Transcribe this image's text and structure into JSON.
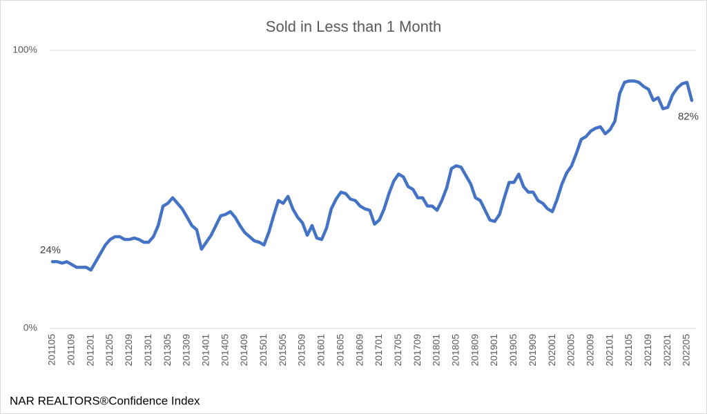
{
  "chart_data": {
    "type": "line",
    "title": "Sold in Less than 1 Month",
    "source": "NAR REALTORS®Confidence Index",
    "categories": [
      "201105",
      null,
      null,
      null,
      "201109",
      null,
      null,
      null,
      "201201",
      null,
      null,
      null,
      "201205",
      null,
      null,
      null,
      "201209",
      null,
      null,
      null,
      "201301",
      null,
      null,
      null,
      "201305",
      null,
      null,
      null,
      "201309",
      null,
      null,
      null,
      "201401",
      null,
      null,
      null,
      "201405",
      null,
      null,
      null,
      "201409",
      null,
      null,
      null,
      "201501",
      null,
      null,
      null,
      "201505",
      null,
      null,
      null,
      "201509",
      null,
      null,
      null,
      "201601",
      null,
      null,
      null,
      "201605",
      null,
      null,
      null,
      "201609",
      null,
      null,
      null,
      "201701",
      null,
      null,
      null,
      "201705",
      null,
      null,
      null,
      "201709",
      null,
      null,
      null,
      "201801",
      null,
      null,
      null,
      "201805",
      null,
      null,
      null,
      "201809",
      null,
      null,
      null,
      "201901",
      null,
      null,
      null,
      "201905",
      null,
      null,
      null,
      "201909",
      null,
      null,
      null,
      "202001",
      null,
      null,
      null,
      "202005",
      null,
      null,
      null,
      "202009",
      null,
      null,
      null,
      "202101",
      null,
      null,
      null,
      "202105",
      null,
      null,
      null,
      "202109",
      null,
      null,
      null,
      "202201",
      null,
      null,
      null,
      "202205",
      null
    ],
    "values": [
      24,
      24,
      23.5,
      24,
      23,
      22,
      22,
      22,
      21,
      24,
      27,
      30,
      32,
      33,
      33,
      32,
      32,
      32.5,
      32,
      31,
      31,
      33,
      37,
      44,
      45,
      47,
      45,
      43,
      40,
      37,
      35.5,
      28.5,
      31,
      33.5,
      37,
      40.5,
      41,
      42,
      40,
      37,
      34.5,
      33,
      31.5,
      31,
      30,
      34.5,
      40.5,
      46,
      45,
      47.5,
      43,
      40,
      38,
      33.5,
      37,
      32.5,
      32,
      36,
      43,
      46.5,
      49,
      48.5,
      46.5,
      46,
      44,
      43,
      42.5,
      37.5,
      39,
      43,
      48.5,
      53,
      55.5,
      54.5,
      51,
      50,
      47,
      47,
      44,
      44,
      42.5,
      46,
      50.5,
      57.5,
      58.5,
      58,
      55,
      52,
      47,
      46,
      42.5,
      39,
      38.5,
      41,
      47,
      52.5,
      52.5,
      55.5,
      51,
      49,
      49,
      46,
      45,
      43,
      42,
      46.5,
      52,
      56,
      58.5,
      63,
      68,
      69,
      71,
      72,
      72.5,
      70,
      71.5,
      74.5,
      84.5,
      88.5,
      89,
      89,
      88.5,
      87,
      86,
      82,
      83,
      79,
      79.5,
      84,
      86.5,
      88,
      88.5,
      82
    ],
    "value_labels": [
      "24%",
      null,
      null,
      null,
      null,
      null,
      null,
      null,
      null,
      null,
      null,
      null,
      null,
      null,
      null,
      null,
      null,
      null,
      null,
      null,
      null,
      null,
      null,
      null,
      null,
      null,
      null,
      null,
      null,
      null,
      null,
      null,
      null,
      null,
      null,
      null,
      null,
      null,
      null,
      null,
      null,
      null,
      null,
      null,
      null,
      null,
      null,
      null,
      null,
      null,
      null,
      null,
      null,
      null,
      null,
      null,
      null,
      null,
      null,
      null,
      null,
      null,
      null,
      null,
      null,
      null,
      null,
      null,
      null,
      null,
      null,
      null,
      null,
      null,
      null,
      null,
      null,
      null,
      null,
      null,
      null,
      null,
      null,
      null,
      null,
      null,
      null,
      null,
      null,
      null,
      null,
      null,
      null,
      null,
      null,
      null,
      null,
      null,
      null,
      null,
      null,
      null,
      null,
      null,
      null,
      null,
      null,
      null,
      null,
      null,
      null,
      null,
      null,
      null,
      null,
      null,
      null,
      null,
      null,
      null,
      null,
      null,
      null,
      null,
      null,
      null,
      null,
      null,
      null,
      null,
      null,
      null,
      null,
      "82%"
    ],
    "color": "#4472c4",
    "ylim": [
      0,
      100
    ],
    "yticks": [
      {
        "value": 0,
        "label": "0%"
      },
      {
        "value": 100,
        "label": "100%"
      }
    ],
    "grid": true
  }
}
